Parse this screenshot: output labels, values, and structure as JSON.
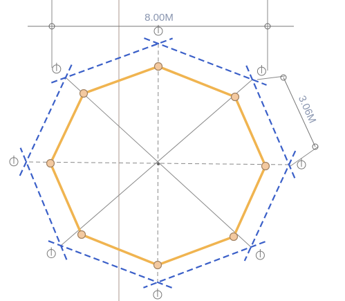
{
  "dimensions": {
    "width_label": "8.00M",
    "side_label": "3.06M"
  }
}
